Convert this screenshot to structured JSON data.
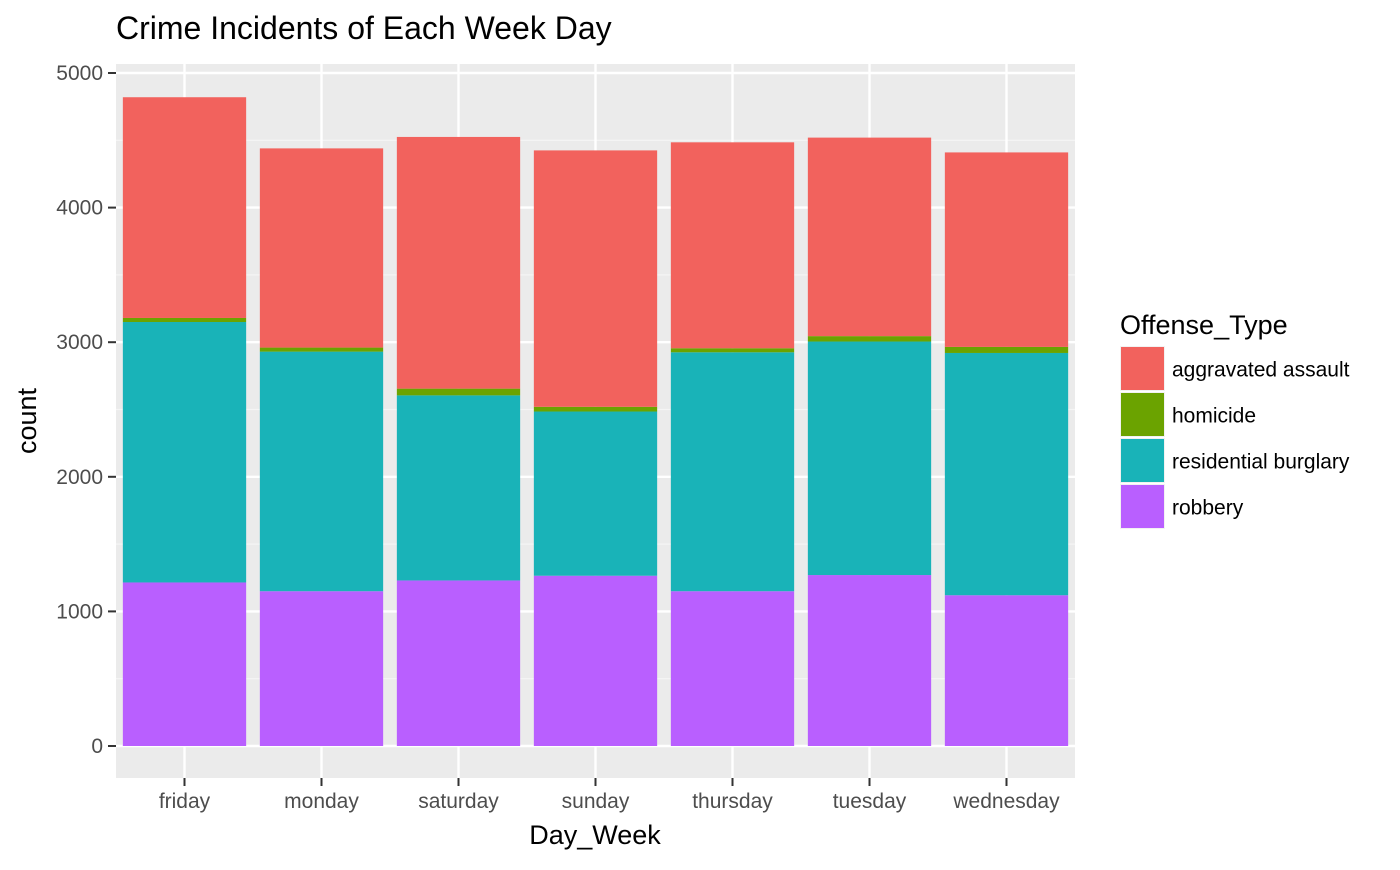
{
  "chart_data": {
    "type": "bar",
    "stacked": true,
    "title": "Crime Incidents of Each Week Day",
    "xlabel": "Day_Week",
    "ylabel": "count",
    "ylim": [
      0,
      5000
    ],
    "yticks": [
      0,
      1000,
      2000,
      3000,
      4000,
      5000
    ],
    "grid": true,
    "legend": {
      "title": "Offense_Type",
      "position": "right"
    },
    "categories": [
      "friday",
      "monday",
      "saturday",
      "sunday",
      "thursday",
      "tuesday",
      "wednesday"
    ],
    "series": [
      {
        "name": "robbery",
        "color": "#B95FFF",
        "values": [
          1215,
          1150,
          1230,
          1265,
          1150,
          1270,
          1120
        ]
      },
      {
        "name": "residential burglary",
        "color": "#19B3B8",
        "values": [
          1935,
          1780,
          1375,
          1220,
          1775,
          1735,
          1800
        ]
      },
      {
        "name": "homicide",
        "color": "#6BA300",
        "values": [
          30,
          30,
          50,
          35,
          30,
          40,
          45
        ]
      },
      {
        "name": "aggravated assault",
        "color": "#F2625D",
        "values": [
          1640,
          1480,
          1870,
          1905,
          1530,
          1475,
          1445
        ]
      }
    ],
    "legend_order": [
      "aggravated assault",
      "homicide",
      "residential burglary",
      "robbery"
    ]
  }
}
